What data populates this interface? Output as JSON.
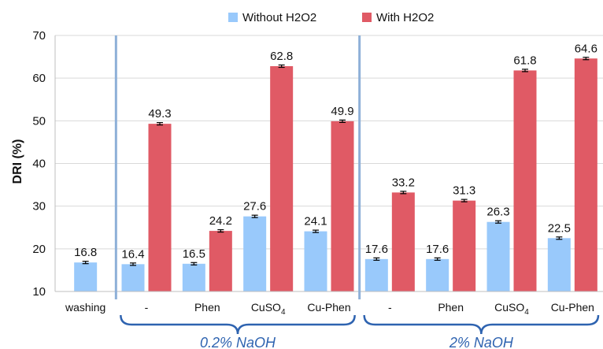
{
  "chart_data": {
    "type": "bar",
    "categories": [
      "washing",
      "-",
      "Phen",
      "CuSO4",
      "Cu-Phen",
      "-",
      "Phen",
      "CuSO4",
      "Cu-Phen"
    ],
    "series": [
      {
        "name": "Without H2O2",
        "color": "#99c9fb",
        "values": [
          16.8,
          16.4,
          16.5,
          27.6,
          24.1,
          17.6,
          17.6,
          26.3,
          22.5
        ],
        "labels": [
          "16.8",
          "16.4",
          "16.5",
          "27.6",
          "24.1",
          "17.6",
          "17.6",
          "26.3",
          "22.5"
        ]
      },
      {
        "name": "With H2O2",
        "color": "#e05a65",
        "values": [
          null,
          49.3,
          24.2,
          62.8,
          49.9,
          33.2,
          31.3,
          61.8,
          64.6
        ],
        "labels": [
          "",
          "49.3",
          "24.2",
          "62.8",
          "49.9",
          "33.2",
          "31.3",
          "61.8",
          "64.6"
        ]
      }
    ],
    "ylabel": "DRI (%)",
    "ylim": [
      10,
      70
    ],
    "yticks": [
      10,
      20,
      30,
      40,
      50,
      60,
      70
    ],
    "ytick_labels": [
      "10",
      "20",
      "30",
      "40",
      "50",
      "60",
      "70"
    ],
    "legend_position": "top",
    "groups": [
      {
        "label": "0.2% NaOH",
        "categories": [
          "-",
          "Phen",
          "CuSO4",
          "Cu-Phen"
        ]
      },
      {
        "label": "2% NaOH",
        "categories": [
          "-",
          "Phen",
          "CuSO4",
          "Cu-Phen"
        ]
      }
    ],
    "group_color": "#2e63b0",
    "separator_color": "#8eb0d8",
    "error_bars": true
  }
}
